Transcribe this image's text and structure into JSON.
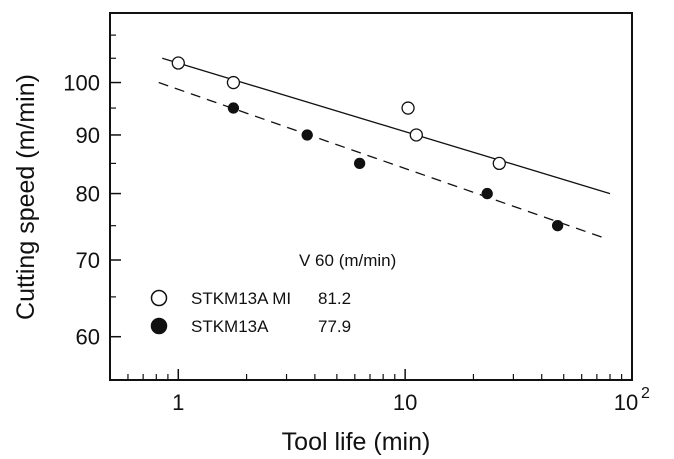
{
  "chart_data": {
    "type": "scatter",
    "xscale": "log",
    "yscale": "log",
    "xlim": [
      0.5,
      100
    ],
    "ylim": [
      55,
      115
    ],
    "xlabel": "Tool life (min)",
    "ylabel": "Cutting speed (m/min)",
    "xticks": [
      {
        "value": 1,
        "label": "1"
      },
      {
        "value": 10,
        "label": "10"
      },
      {
        "value": 100,
        "label": "10",
        "sup": "2"
      }
    ],
    "yticks": [
      {
        "value": 60,
        "label": "60"
      },
      {
        "value": 70,
        "label": "70"
      },
      {
        "value": 80,
        "label": "80"
      },
      {
        "value": 90,
        "label": "90"
      },
      {
        "value": 100,
        "label": "100"
      }
    ],
    "legend": {
      "header": "V 60 (m/min)",
      "entries": [
        {
          "marker": "open-circle",
          "name": "STKM13A MI",
          "value": "81.2"
        },
        {
          "marker": "filled-circle",
          "name": "STKM13A",
          "value": "77.9"
        }
      ]
    },
    "series": [
      {
        "name": "STKM13A MI",
        "marker": "open-circle",
        "line": "solid",
        "points": [
          [
            1.0,
            104
          ],
          [
            1.75,
            100
          ],
          [
            10.3,
            95
          ],
          [
            11.2,
            90
          ],
          [
            26,
            85
          ]
        ],
        "fit": [
          [
            0.85,
            105
          ],
          [
            80,
            80
          ]
        ]
      },
      {
        "name": "STKM13A",
        "marker": "filled-circle",
        "line": "dashed",
        "points": [
          [
            1.75,
            95
          ],
          [
            3.7,
            90
          ],
          [
            6.3,
            85
          ],
          [
            23,
            80
          ],
          [
            47,
            75
          ]
        ],
        "fit": [
          [
            0.82,
            100
          ],
          [
            78,
            73
          ]
        ]
      }
    ]
  }
}
